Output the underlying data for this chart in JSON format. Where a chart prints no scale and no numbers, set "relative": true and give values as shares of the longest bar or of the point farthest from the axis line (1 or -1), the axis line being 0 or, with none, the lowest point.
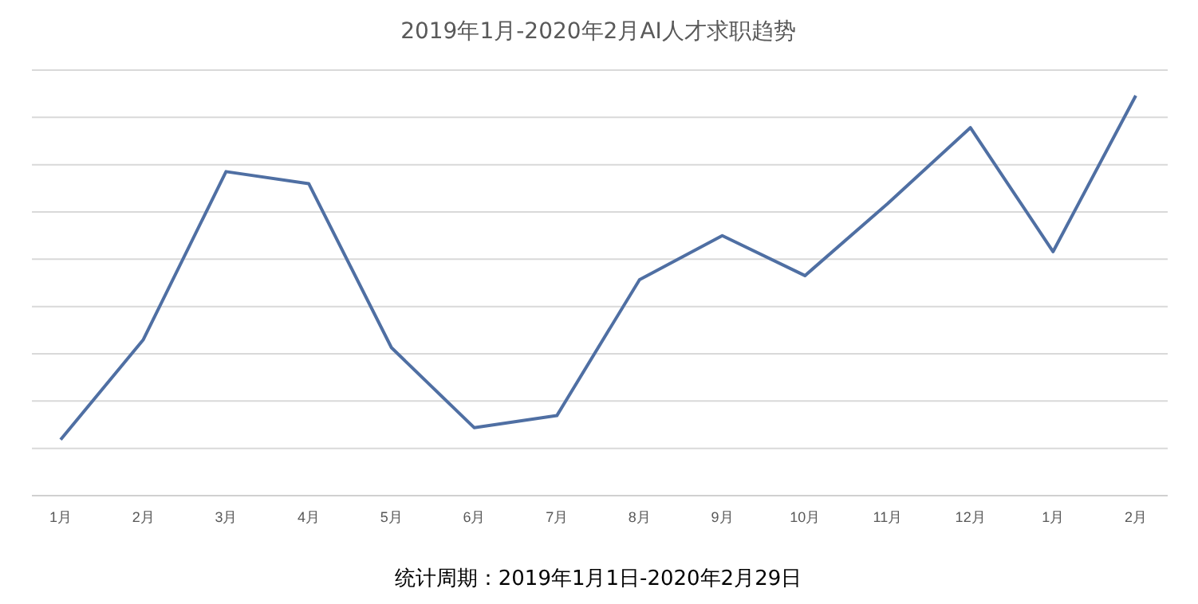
{
  "chart_data": {
    "type": "line",
    "title": "2019年1月-2020年2月AI人才求职趋势",
    "relative": true,
    "grid": "y",
    "marker": "none",
    "line_style": "solid",
    "categories": [
      "1月",
      "2月",
      "3月",
      "4月",
      "5月",
      "6月",
      "7月",
      "8月",
      "9月",
      "10月",
      "11月",
      "12月",
      "1月",
      "2月"
    ],
    "series": [
      {
        "color": "#4f6fa3",
        "values": [
          0.14,
          0.39,
          0.81,
          0.78,
          0.37,
          0.17,
          0.2,
          0.54,
          0.65,
          0.55,
          0.73,
          0.92,
          0.61,
          1.0
        ]
      }
    ],
    "annotations": [
      "统计周期：2019年1月1日-2020年2月29日"
    ]
  }
}
